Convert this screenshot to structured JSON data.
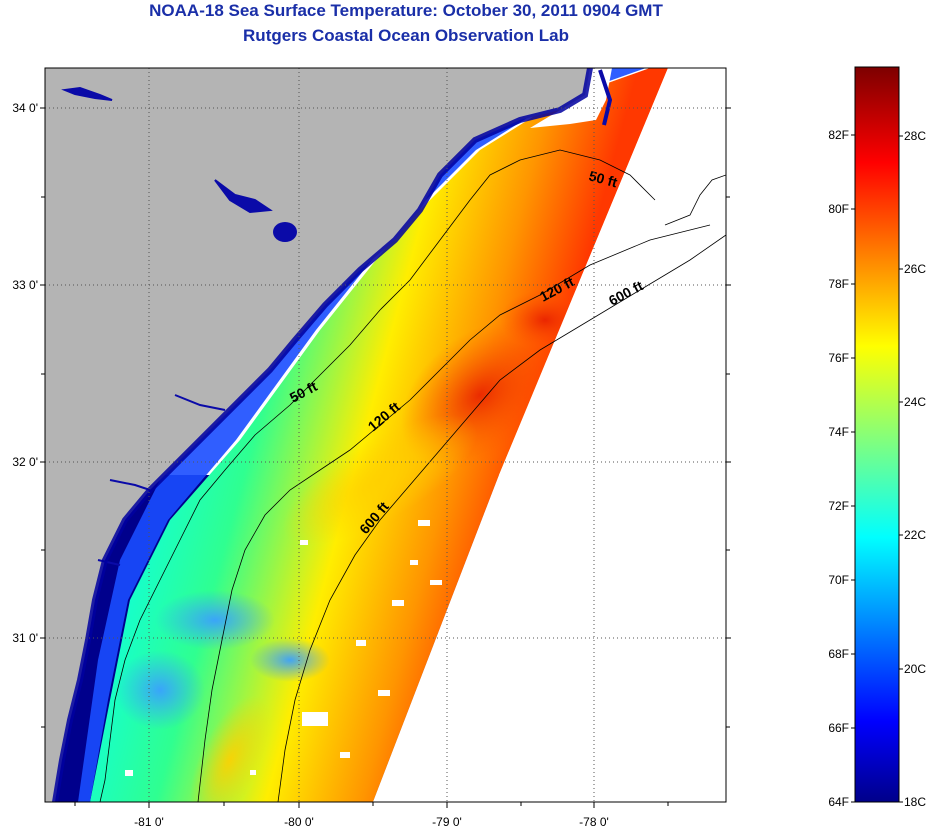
{
  "header": {
    "title": "NOAA-18 Sea Surface Temperature:  October 30, 2011 0904 GMT",
    "subtitle": "Rutgers Coastal Ocean Observation Lab"
  },
  "map": {
    "lat_labels": [
      "34 0'",
      "33 0'",
      "32 0'",
      "31 0'"
    ],
    "lon_labels": [
      "-81 0'",
      "-80 0'",
      "-79 0'",
      "-78 0'"
    ],
    "contour_labels": [
      {
        "text": "50 ft",
        "depth": 50
      },
      {
        "text": "120 ft",
        "depth": 120
      },
      {
        "text": "600 ft",
        "depth": 600
      },
      {
        "text": "50 ft",
        "depth": 50
      },
      {
        "text": "120 ft",
        "depth": 120
      },
      {
        "text": "600 ft",
        "depth": 600
      }
    ],
    "colors": {
      "land": "#b4b4b4",
      "no_data": "#ffffff",
      "cold_water": "#00008c"
    }
  },
  "colorbar": {
    "fahrenheit": [
      "82F",
      "80F",
      "78F",
      "76F",
      "74F",
      "72F",
      "70F",
      "68F",
      "66F",
      "64F"
    ],
    "celsius": [
      "28C",
      "26C",
      "24C",
      "22C",
      "20C",
      "18C"
    ],
    "range_c": [
      18,
      29.5
    ]
  }
}
